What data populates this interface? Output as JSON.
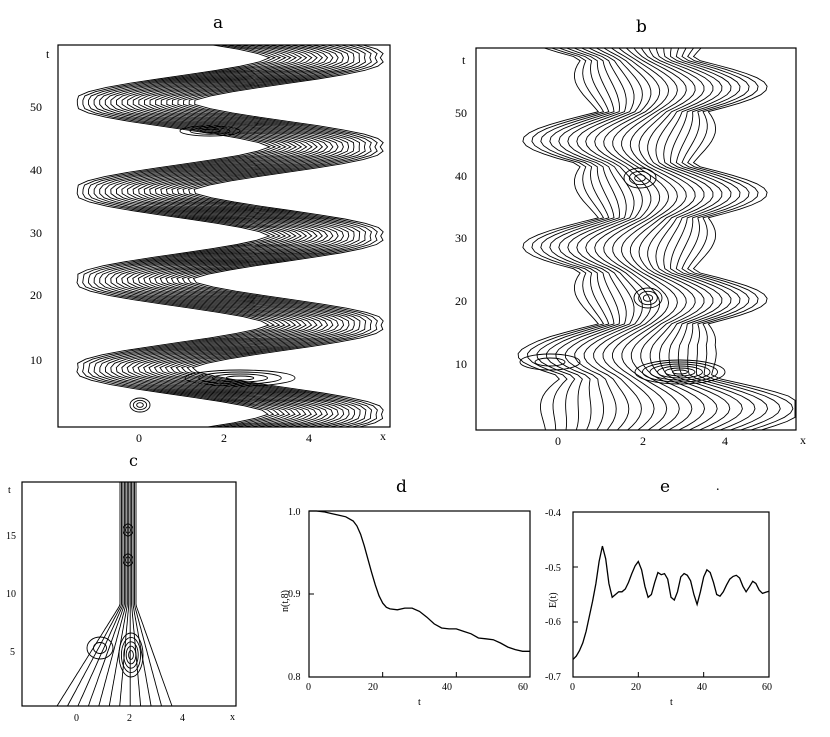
{
  "chart_data": [
    {
      "id": "a",
      "type": "contour",
      "panel_label": "a",
      "xlabel": "x",
      "ylabel": "t",
      "xticks": [
        "0",
        "2",
        "4"
      ],
      "yticks": [
        "10",
        "20",
        "30",
        "40",
        "50"
      ],
      "xlim": [
        -1.7,
        5.8
      ],
      "ylim": [
        0,
        58
      ]
    },
    {
      "id": "b",
      "type": "contour",
      "panel_label": "b",
      "xlabel": "x",
      "ylabel": "t",
      "xticks": [
        "0",
        "2",
        "4"
      ],
      "yticks": [
        "10",
        "20",
        "30",
        "40",
        "50"
      ],
      "xlim": [
        -1.9,
        5.8
      ],
      "ylim": [
        0,
        58
      ]
    },
    {
      "id": "c",
      "type": "contour",
      "panel_label": "c",
      "xlabel": "x",
      "ylabel": "t",
      "xticks": [
        "0",
        "2",
        "4"
      ],
      "yticks": [
        "5",
        "10",
        "15"
      ],
      "xlim": [
        -2.0,
        5.0
      ],
      "ylim": [
        0,
        19
      ]
    },
    {
      "id": "d",
      "type": "line",
      "panel_label": "d",
      "xlabel": "t",
      "ylabel": "n(t,8)",
      "xticks": [
        "0",
        "20",
        "40",
        "60"
      ],
      "yticks": [
        "0.8",
        "0.9",
        "1.0"
      ],
      "xlim": [
        0,
        60
      ],
      "ylim": [
        0.8,
        1.0
      ],
      "x": [
        0,
        2,
        4,
        6,
        8,
        10,
        12,
        13,
        14,
        15,
        16,
        17,
        18,
        19,
        20,
        21,
        22,
        24,
        26,
        28,
        30,
        32,
        34,
        36,
        38,
        40,
        42,
        44,
        46,
        48,
        50,
        52,
        54,
        56,
        58,
        60
      ],
      "y": [
        1.0,
        1.0,
        0.999,
        0.997,
        0.995,
        0.993,
        0.988,
        0.982,
        0.972,
        0.958,
        0.942,
        0.926,
        0.911,
        0.898,
        0.889,
        0.884,
        0.882,
        0.881,
        0.883,
        0.883,
        0.879,
        0.872,
        0.864,
        0.859,
        0.858,
        0.858,
        0.855,
        0.852,
        0.847,
        0.846,
        0.845,
        0.841,
        0.836,
        0.833,
        0.831,
        0.831
      ]
    },
    {
      "id": "e",
      "type": "line",
      "panel_label": "e",
      "xlabel": "t",
      "ylabel": "E(t)",
      "xticks": [
        "0",
        "20",
        "40",
        "60"
      ],
      "yticks": [
        "-0.7",
        "-0.6",
        "-0.5",
        "-0.4"
      ],
      "xlim": [
        0,
        60
      ],
      "ylim": [
        -0.7,
        -0.4
      ],
      "x": [
        0,
        1,
        2,
        3,
        4,
        5,
        6,
        7,
        8,
        9,
        10,
        11,
        12,
        13,
        14,
        15,
        16,
        17,
        18,
        19,
        20,
        21,
        22,
        23,
        24,
        25,
        26,
        27,
        28,
        29,
        30,
        31,
        32,
        33,
        34,
        35,
        36,
        37,
        38,
        39,
        40,
        41,
        42,
        43,
        44,
        45,
        46,
        47,
        48,
        49,
        50,
        51,
        52,
        53,
        54,
        55,
        56,
        57,
        58,
        59,
        60
      ],
      "y": [
        -0.668,
        -0.662,
        -0.652,
        -0.638,
        -0.617,
        -0.59,
        -0.562,
        -0.53,
        -0.49,
        -0.462,
        -0.485,
        -0.53,
        -0.555,
        -0.55,
        -0.545,
        -0.545,
        -0.54,
        -0.528,
        -0.512,
        -0.498,
        -0.49,
        -0.505,
        -0.535,
        -0.555,
        -0.55,
        -0.528,
        -0.51,
        -0.514,
        -0.512,
        -0.522,
        -0.555,
        -0.56,
        -0.545,
        -0.518,
        -0.512,
        -0.515,
        -0.525,
        -0.55,
        -0.568,
        -0.545,
        -0.518,
        -0.505,
        -0.51,
        -0.528,
        -0.55,
        -0.553,
        -0.545,
        -0.533,
        -0.522,
        -0.517,
        -0.515,
        -0.52,
        -0.535,
        -0.545,
        -0.536,
        -0.526,
        -0.53,
        -0.542,
        -0.548,
        -0.546,
        -0.544
      ]
    }
  ],
  "decor": {
    "dot": "."
  }
}
